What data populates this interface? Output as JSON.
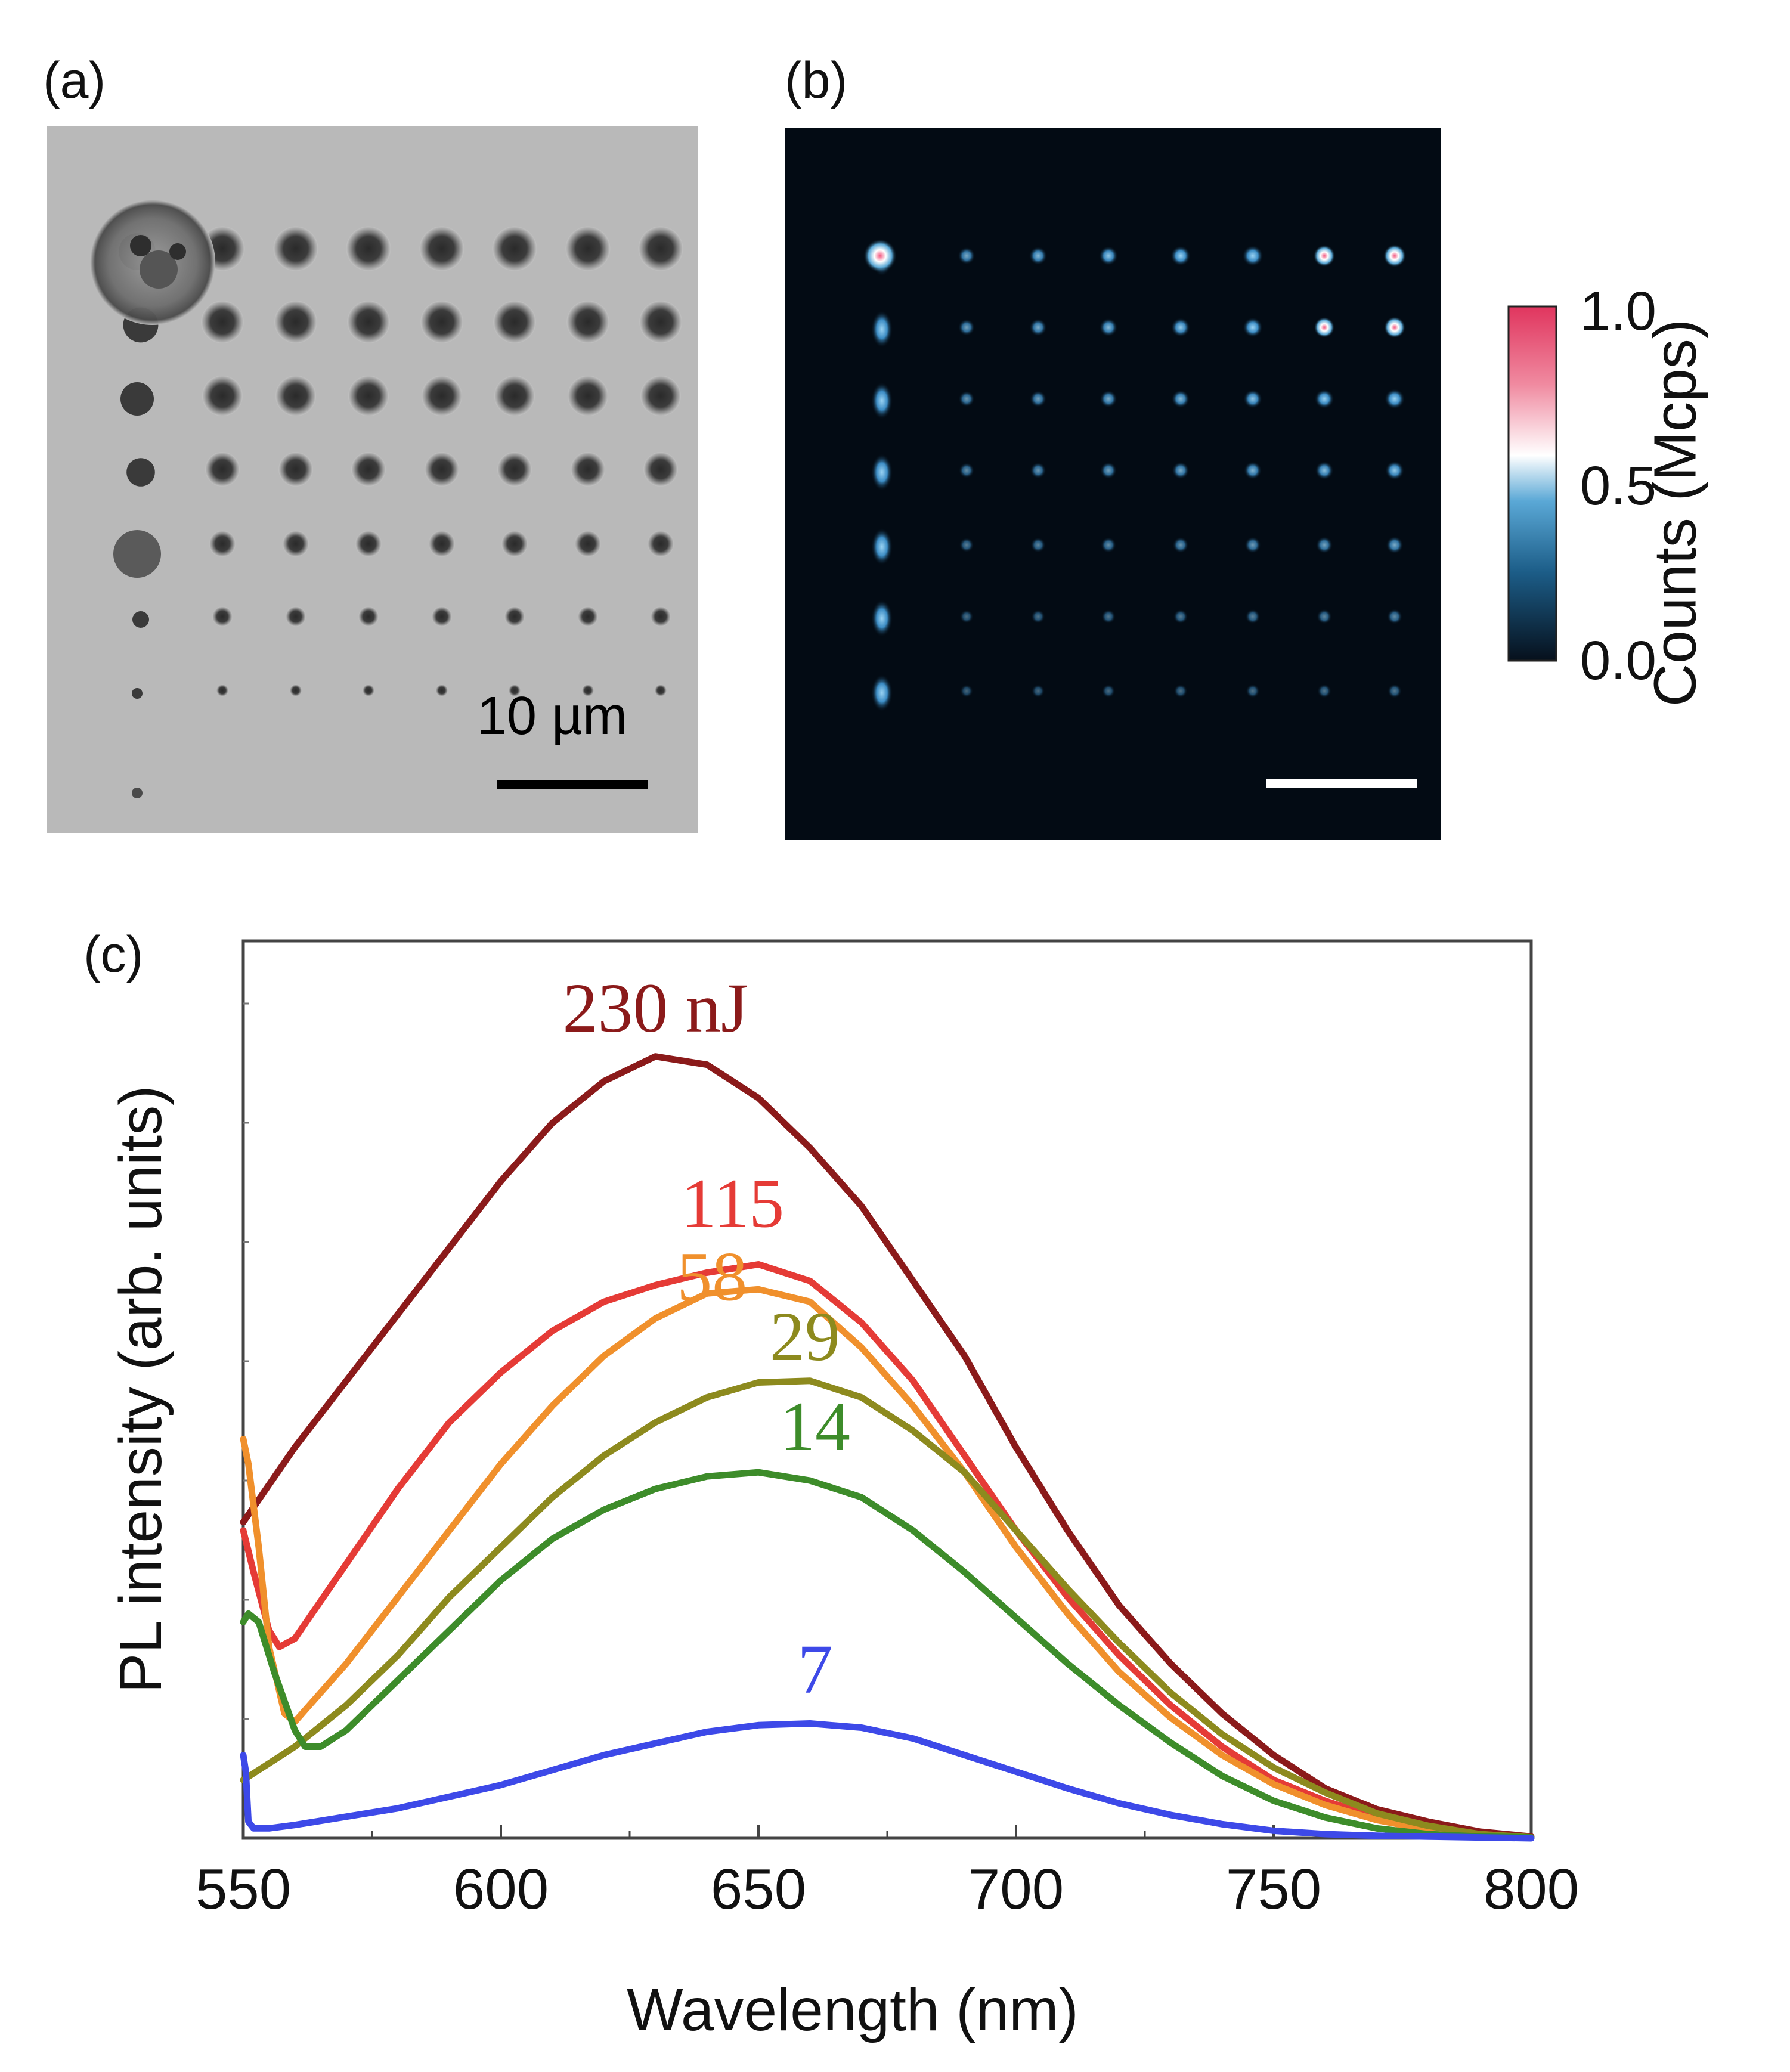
{
  "panels": {
    "a": {
      "label": "(a)",
      "scalebar_text": "10 µm"
    },
    "b": {
      "label": "(b)",
      "colorbar": {
        "title": "Counts (Mcps)",
        "ticks": [
          "1.0",
          "0.5",
          "0.0"
        ],
        "colors": [
          "#06101c",
          "#1c5d88",
          "#5aa8d6",
          "#ffffff",
          "#f08aa0",
          "#e0355e"
        ]
      }
    },
    "c": {
      "label": "(c)"
    }
  },
  "chart_data": {
    "type": "line",
    "title": "",
    "xlabel": "Wavelength (nm)",
    "ylabel": "PL intensity (arb. units)",
    "xlim": [
      550,
      800
    ],
    "ylim": [
      0,
      1.0
    ],
    "x_ticks": [
      "550",
      "600",
      "650",
      "700",
      "750",
      "800"
    ],
    "series": [
      {
        "name": "230 nJ",
        "label": "230 nJ",
        "color": "#8b1a1a",
        "x": [
          550,
          560,
          575,
          590,
          600,
          610,
          620,
          630,
          640,
          650,
          660,
          670,
          680,
          690,
          700,
          710,
          720,
          730,
          740,
          750,
          760,
          770,
          780,
          790,
          800
        ],
        "y": [
          0.38,
          0.47,
          0.59,
          0.71,
          0.79,
          0.86,
          0.91,
          0.94,
          0.93,
          0.89,
          0.83,
          0.76,
          0.67,
          0.58,
          0.47,
          0.37,
          0.28,
          0.21,
          0.15,
          0.1,
          0.06,
          0.035,
          0.02,
          0.008,
          0.002
        ],
        "label_at": [
          630,
          0.97
        ]
      },
      {
        "name": "115",
        "label": "115",
        "color": "#e53b36",
        "x": [
          550,
          552,
          555,
          557,
          560,
          570,
          580,
          590,
          600,
          610,
          620,
          630,
          640,
          650,
          660,
          670,
          680,
          690,
          700,
          710,
          720,
          730,
          740,
          750,
          760,
          770,
          780,
          790,
          800
        ],
        "y": [
          0.37,
          0.32,
          0.25,
          0.23,
          0.24,
          0.33,
          0.42,
          0.5,
          0.56,
          0.61,
          0.645,
          0.665,
          0.68,
          0.69,
          0.67,
          0.62,
          0.55,
          0.46,
          0.37,
          0.29,
          0.22,
          0.16,
          0.11,
          0.07,
          0.045,
          0.025,
          0.012,
          0.005,
          0.001
        ],
        "label_at": [
          645,
          0.735
        ]
      },
      {
        "name": "58",
        "label": "58",
        "color": "#f0902c",
        "x": [
          550,
          551,
          553,
          555,
          558,
          560,
          570,
          580,
          590,
          600,
          610,
          620,
          630,
          640,
          650,
          660,
          670,
          680,
          690,
          700,
          710,
          720,
          730,
          740,
          750,
          760,
          770,
          780,
          790,
          800
        ],
        "y": [
          0.48,
          0.45,
          0.35,
          0.23,
          0.15,
          0.14,
          0.21,
          0.29,
          0.37,
          0.45,
          0.52,
          0.58,
          0.625,
          0.655,
          0.66,
          0.645,
          0.59,
          0.52,
          0.44,
          0.35,
          0.27,
          0.2,
          0.145,
          0.1,
          0.065,
          0.04,
          0.022,
          0.01,
          0.004,
          0.001
        ],
        "label_at": [
          641,
          0.647
        ]
      },
      {
        "name": "29",
        "label": "29",
        "color": "#8d8a1e",
        "x": [
          550,
          560,
          570,
          580,
          590,
          600,
          610,
          620,
          630,
          640,
          650,
          660,
          670,
          680,
          690,
          700,
          710,
          720,
          730,
          740,
          750,
          760,
          770,
          780,
          790,
          800
        ],
        "y": [
          0.07,
          0.11,
          0.16,
          0.22,
          0.29,
          0.35,
          0.41,
          0.46,
          0.5,
          0.53,
          0.548,
          0.55,
          0.53,
          0.49,
          0.44,
          0.37,
          0.3,
          0.235,
          0.175,
          0.125,
          0.085,
          0.055,
          0.03,
          0.015,
          0.005,
          0.001
        ],
        "label_at": [
          659,
          0.575
        ]
      },
      {
        "name": "14",
        "label": "14",
        "color": "#3d8c2a",
        "x": [
          550,
          551,
          553,
          556,
          560,
          562,
          565,
          570,
          580,
          590,
          600,
          610,
          620,
          630,
          640,
          650,
          660,
          670,
          680,
          690,
          700,
          710,
          720,
          730,
          740,
          750,
          760,
          770,
          780,
          790,
          800
        ],
        "y": [
          0.26,
          0.27,
          0.26,
          0.2,
          0.13,
          0.11,
          0.11,
          0.13,
          0.19,
          0.25,
          0.31,
          0.36,
          0.395,
          0.42,
          0.435,
          0.44,
          0.43,
          0.41,
          0.37,
          0.32,
          0.265,
          0.21,
          0.16,
          0.115,
          0.075,
          0.045,
          0.025,
          0.012,
          0.005,
          0.002,
          0.001
        ],
        "label_at": [
          661,
          0.467
        ]
      },
      {
        "name": "7",
        "label": "7",
        "color": "#3d49e8",
        "x": [
          550,
          550.5,
          551,
          552,
          555,
          560,
          580,
          600,
          620,
          640,
          650,
          660,
          670,
          680,
          690,
          700,
          710,
          720,
          730,
          740,
          750,
          760,
          770,
          780,
          790,
          800
        ],
        "y": [
          0.1,
          0.08,
          0.02,
          0.012,
          0.012,
          0.016,
          0.036,
          0.064,
          0.1,
          0.128,
          0.136,
          0.138,
          0.133,
          0.12,
          0.1,
          0.08,
          0.06,
          0.042,
          0.028,
          0.017,
          0.009,
          0.005,
          0.003,
          0.002,
          0.001,
          0.0
        ],
        "label_at": [
          661,
          0.175
        ]
      }
    ]
  }
}
